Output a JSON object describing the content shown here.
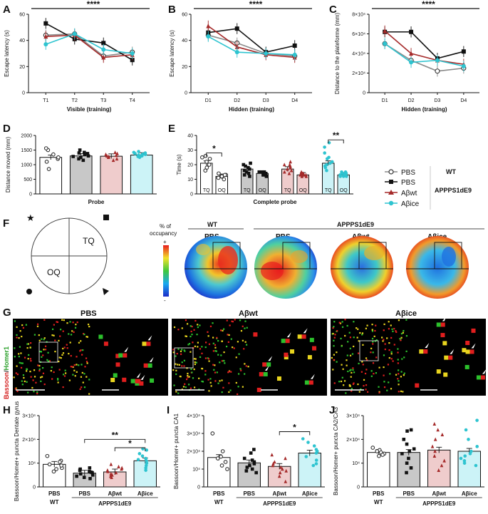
{
  "panel_labels": {
    "A": "A",
    "B": "B",
    "C": "C",
    "D": "D",
    "E": "E",
    "F": "F",
    "G": "G",
    "H": "H",
    "I": "I",
    "J": "J"
  },
  "colors": {
    "pbs_wt": "#8a8a8a",
    "pbs_app": "#111111",
    "abwt": "#a52a2a",
    "abice": "#2ec4d0",
    "bar_wt": "#ffffff",
    "bar_pbs": "#c8c8c8",
    "bar_abwt": "#efcccc",
    "bar_abice": "#ccf3f7"
  },
  "legend": {
    "items": [
      "PBS",
      "PBS",
      "Aβwt",
      "Aβice"
    ],
    "group_wt": "WT",
    "group_app": "APPPS1dE9"
  },
  "chart_data": [
    {
      "id": "A",
      "type": "line",
      "title": "",
      "xlabel": "Visible (training)",
      "ylabel": "Escape latency (s)",
      "categories": [
        "T1",
        "T2",
        "T3",
        "T4"
      ],
      "ylim": [
        0,
        60
      ],
      "yticks": [
        "0",
        "20",
        "40",
        "60"
      ],
      "significance": "****",
      "series": [
        {
          "name": "PBS WT",
          "values": [
            44,
            45,
            28,
            31
          ]
        },
        {
          "name": "PBS APPPS1dE9",
          "values": [
            53,
            41,
            38,
            25
          ]
        },
        {
          "name": "Aβwt",
          "values": [
            43,
            44,
            27,
            29
          ]
        },
        {
          "name": "Aβice",
          "values": [
            37,
            45,
            33,
            30
          ]
        }
      ]
    },
    {
      "id": "B",
      "type": "line",
      "title": "",
      "xlabel": "Hidden (training)",
      "ylabel": "Escape latency (s)",
      "categories": [
        "D1",
        "D2",
        "D3",
        "D4"
      ],
      "ylim": [
        0,
        60
      ],
      "yticks": [
        "0",
        "20",
        "40",
        "60"
      ],
      "significance": "****",
      "series": [
        {
          "name": "PBS WT",
          "values": [
            44,
            38,
            30,
            28
          ]
        },
        {
          "name": "PBS APPPS1dE9",
          "values": [
            46,
            49,
            31,
            36
          ]
        },
        {
          "name": "Aβwt",
          "values": [
            51,
            35,
            29,
            27
          ]
        },
        {
          "name": "Aβice",
          "values": [
            43,
            31,
            30,
            29
          ]
        }
      ]
    },
    {
      "id": "C",
      "type": "line",
      "title": "",
      "xlabel": "Hidden (training)",
      "ylabel": "Distance to the plateforme (mm)",
      "categories": [
        "D1",
        "D2",
        "D3",
        "D4"
      ],
      "ylim": [
        0,
        80000
      ],
      "yticks": [
        "0",
        "2×10⁴",
        "4×10⁴",
        "6×10⁴",
        "8×10⁴"
      ],
      "significance": "****",
      "series": [
        {
          "name": "PBS WT",
          "values": [
            50000,
            33000,
            22000,
            25000
          ]
        },
        {
          "name": "PBS APPPS1dE9",
          "values": [
            62000,
            62000,
            35000,
            42000
          ]
        },
        {
          "name": "Aβwt",
          "values": [
            63000,
            40000,
            33000,
            29000
          ]
        },
        {
          "name": "Aβice",
          "values": [
            50000,
            31000,
            33000,
            27000
          ]
        }
      ]
    },
    {
      "id": "D",
      "type": "bar",
      "title": "",
      "xlabel": "Probe",
      "ylabel": "Distance moved (mm)",
      "categories": [
        "PBS WT",
        "PBS APPPS1dE9",
        "Aβwt",
        "Aβice"
      ],
      "values": [
        1250,
        1300,
        1290,
        1330
      ],
      "ylim": [
        0,
        2000
      ],
      "yticks": [
        "0",
        "500",
        "1000",
        "1500",
        "2000"
      ],
      "points": [
        [
          1500,
          1560,
          1200,
          850,
          1350,
          1100,
          1250
        ],
        [
          1500,
          1400,
          1250,
          1300,
          1350,
          1200,
          1150,
          1420,
          1280,
          1380
        ],
        [
          1420,
          1380,
          1350,
          1300,
          1250,
          1200,
          1150,
          1320,
          1280
        ],
        [
          1450,
          1400,
          1380,
          1350,
          1320,
          1300,
          1280,
          1360,
          1420,
          1250,
          1330
        ]
      ]
    },
    {
      "id": "E",
      "type": "bar",
      "title": "",
      "xlabel": "Complete probe",
      "ylabel": "Time (s)",
      "categories": [
        "TQ",
        "OQ",
        "TQ",
        "OQ",
        "TQ",
        "OQ",
        "TQ",
        "OQ"
      ],
      "values": [
        21,
        12,
        17,
        14,
        17,
        13,
        21,
        13
      ],
      "ylim": [
        0,
        40
      ],
      "yticks": [
        "0",
        "10",
        "20",
        "30",
        "40"
      ],
      "significance": [
        "*",
        "**"
      ],
      "points": [
        [
          26,
          24,
          22,
          20,
          18,
          16,
          25
        ],
        [
          14,
          13,
          12,
          11,
          10,
          12,
          13
        ],
        [
          20,
          18,
          17,
          15,
          13,
          19,
          16,
          14,
          21,
          12
        ],
        [
          15,
          14,
          13,
          12,
          14,
          15,
          13,
          14,
          15,
          14
        ],
        [
          20,
          18,
          16,
          14,
          19,
          17,
          15,
          20,
          22
        ],
        [
          14,
          13,
          12,
          15,
          14,
          13,
          12,
          14,
          13
        ],
        [
          35,
          32,
          25,
          22,
          20,
          18,
          16,
          24,
          28,
          19,
          21
        ],
        [
          15,
          14,
          13,
          12,
          14,
          13,
          12,
          14,
          15,
          13,
          12
        ]
      ]
    },
    {
      "id": "H",
      "type": "bar",
      "title": "",
      "xlabel": "",
      "ylabel": "Bassoon/Homer+ puncta Dentate gyrus",
      "categories": [
        "PBS",
        "PBS",
        "Aβwt",
        "Aβice"
      ],
      "groups": [
        "WT",
        "APPPS1dE9"
      ],
      "values": [
        9500,
        5800,
        6300,
        11000
      ],
      "ylim": [
        0,
        30000
      ],
      "yticks": [
        "0",
        "10⁴",
        "2×10⁴",
        "3×10⁴"
      ],
      "significance": [
        "**",
        "*"
      ],
      "points": [
        [
          13000,
          11000,
          10500,
          9500,
          8000,
          7500,
          6500,
          9000
        ],
        [
          8000,
          7500,
          7000,
          6500,
          6000,
          5500,
          5000,
          4500,
          4000,
          3500,
          6200
        ],
        [
          9500,
          8500,
          8000,
          7000,
          6500,
          6000,
          5500,
          5000,
          4500,
          4000,
          7500
        ],
        [
          16000,
          15500,
          14000,
          13000,
          12000,
          11000,
          10000,
          9000,
          8000,
          7000,
          11500
        ]
      ]
    },
    {
      "id": "I",
      "type": "bar",
      "title": "",
      "xlabel": "",
      "ylabel": "Bassoon/Homer+ puncta CA1",
      "categories": [
        "PBS",
        "PBS",
        "Aβwt",
        "Aβice"
      ],
      "groups": [
        "WT",
        "APPPS1dE9"
      ],
      "values": [
        16500,
        13500,
        11500,
        19000
      ],
      "ylim": [
        0,
        40000
      ],
      "yticks": [
        "0",
        "10⁴",
        "2×10⁴",
        "3×10⁴",
        "4×10⁴"
      ],
      "significance": [
        "*"
      ],
      "points": [
        [
          30000,
          20000,
          17000,
          16000,
          14000,
          12000,
          10000
        ],
        [
          21000,
          19000,
          16000,
          14000,
          13000,
          12000,
          11000,
          10000,
          9000,
          8000,
          15000
        ],
        [
          18000,
          16000,
          14000,
          12000,
          11000,
          10000,
          9000,
          8000,
          6000,
          3000,
          13000
        ],
        [
          27000,
          25000,
          23000,
          21000,
          20000,
          19000,
          17000,
          15000,
          13000,
          12000
        ]
      ]
    },
    {
      "id": "J",
      "type": "bar",
      "title": "",
      "xlabel": "",
      "ylabel": "Bassoon/Homer+ puncta CA2/CA3",
      "categories": [
        "PBS",
        "PBS",
        "Aβwt",
        "Aβice"
      ],
      "groups": [
        "WT",
        "APPPS1dE9"
      ],
      "values": [
        14500,
        14500,
        15500,
        15000
      ],
      "ylim": [
        0,
        30000
      ],
      "yticks": [
        "0",
        "10⁴",
        "2×10⁴",
        "3×10⁴"
      ],
      "points": [
        [
          16500,
          15500,
          15000,
          14500,
          14000,
          13500,
          13000
        ],
        [
          24000,
          23500,
          20000,
          18000,
          16000,
          14000,
          12000,
          10000,
          8000,
          6000,
          15000
        ],
        [
          26500,
          24000,
          22000,
          20000,
          17000,
          15000,
          13000,
          11000,
          9000,
          7000
        ],
        [
          28000,
          24000,
          20000,
          17000,
          15000,
          14000,
          13000,
          12000,
          11000,
          10000,
          9000
        ]
      ]
    }
  ],
  "panel_f": {
    "legend_title": "% of occupancy",
    "plus": "+",
    "minus": "-",
    "tq": "TQ",
    "oq": "OQ",
    "wt_label": "WT",
    "app_label": "APPPS1dE9",
    "maps": [
      "PBS",
      "PBS",
      "Aβwt",
      "Aβice"
    ]
  },
  "panel_g": {
    "stain_a": "Bassoon",
    "stain_sep": "/",
    "stain_b": "Homer1",
    "images": [
      "PBS",
      "Aβwt",
      "Aβice"
    ]
  }
}
